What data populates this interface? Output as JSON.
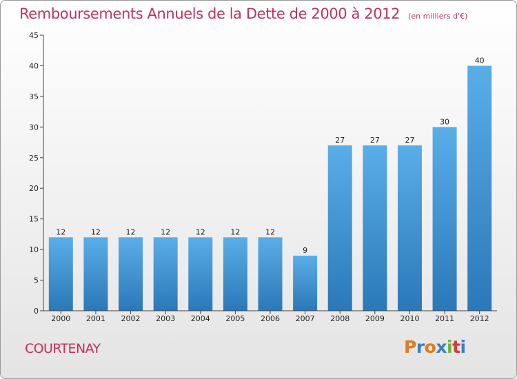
{
  "page": {
    "title": "Remboursements Annuels de la Dette de 2000 à 2012",
    "unit_note": "(en milliers d'€)",
    "commune": "COURTENAY",
    "logo": {
      "text": "Proxiti",
      "letter_colors": [
        "#e07b1f",
        "#3a7fc4",
        "#e07b1f",
        "#3a7fc4",
        "#6bb33a",
        "#d43b3b",
        "#3a7fc4"
      ]
    },
    "colors": {
      "title": "#c0335a",
      "bar_top": "#5aaee8",
      "bar_bottom": "#2a78b8"
    }
  },
  "chart_data": {
    "type": "bar",
    "title": "Remboursements Annuels de la Dette de 2000 à 2012",
    "subtitle": "(en milliers d'€)",
    "xlabel": "",
    "ylabel": "",
    "categories": [
      "2000",
      "2001",
      "2002",
      "2003",
      "2004",
      "2005",
      "2006",
      "2007",
      "2008",
      "2009",
      "2010",
      "2011",
      "2012"
    ],
    "values": [
      12,
      12,
      12,
      12,
      12,
      12,
      12,
      9,
      27,
      27,
      27,
      30,
      40
    ],
    "ylim": [
      0,
      45
    ],
    "yticks": [
      0,
      5,
      10,
      15,
      20,
      25,
      30,
      35,
      40,
      45
    ],
    "grid": false,
    "data_labels": true
  }
}
